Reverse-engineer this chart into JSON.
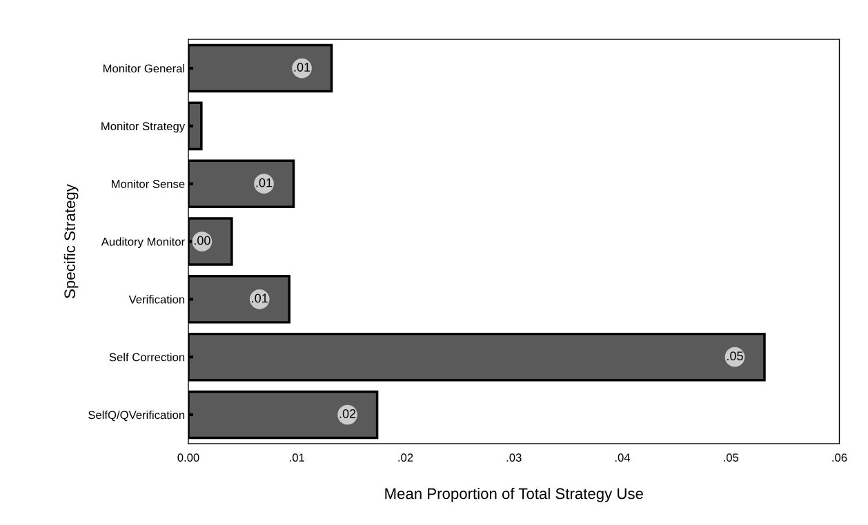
{
  "chart_data": {
    "type": "bar",
    "orientation": "horizontal",
    "xlabel": "Mean Proportion of Total Strategy Use",
    "ylabel": "Specific Strategy",
    "categories": [
      "Monitor General",
      "Monitor Strategy",
      "Monitor Sense",
      "Auditory Monitor",
      "Verification",
      "Self Correction",
      "SelfQ/QVerification"
    ],
    "values": [
      0.0132,
      0.0012,
      0.0097,
      0.004,
      0.0093,
      0.0531,
      0.0174
    ],
    "value_labels": [
      ".01",
      null,
      ".01",
      ".00",
      ".01",
      ".05",
      ".02"
    ],
    "color": "#5a5a5a",
    "xlim": [
      0,
      0.06
    ],
    "xticks": [
      {
        "value": 0,
        "label": "0.00"
      },
      {
        "value": 0.01,
        "label": ".01"
      },
      {
        "value": 0.02,
        "label": ".02"
      },
      {
        "value": 0.03,
        "label": ".03"
      },
      {
        "value": 0.04,
        "label": ".04"
      },
      {
        "value": 0.05,
        "label": ".05"
      },
      {
        "value": 0.06,
        "label": ".06"
      }
    ],
    "grid": false,
    "legend": false
  }
}
